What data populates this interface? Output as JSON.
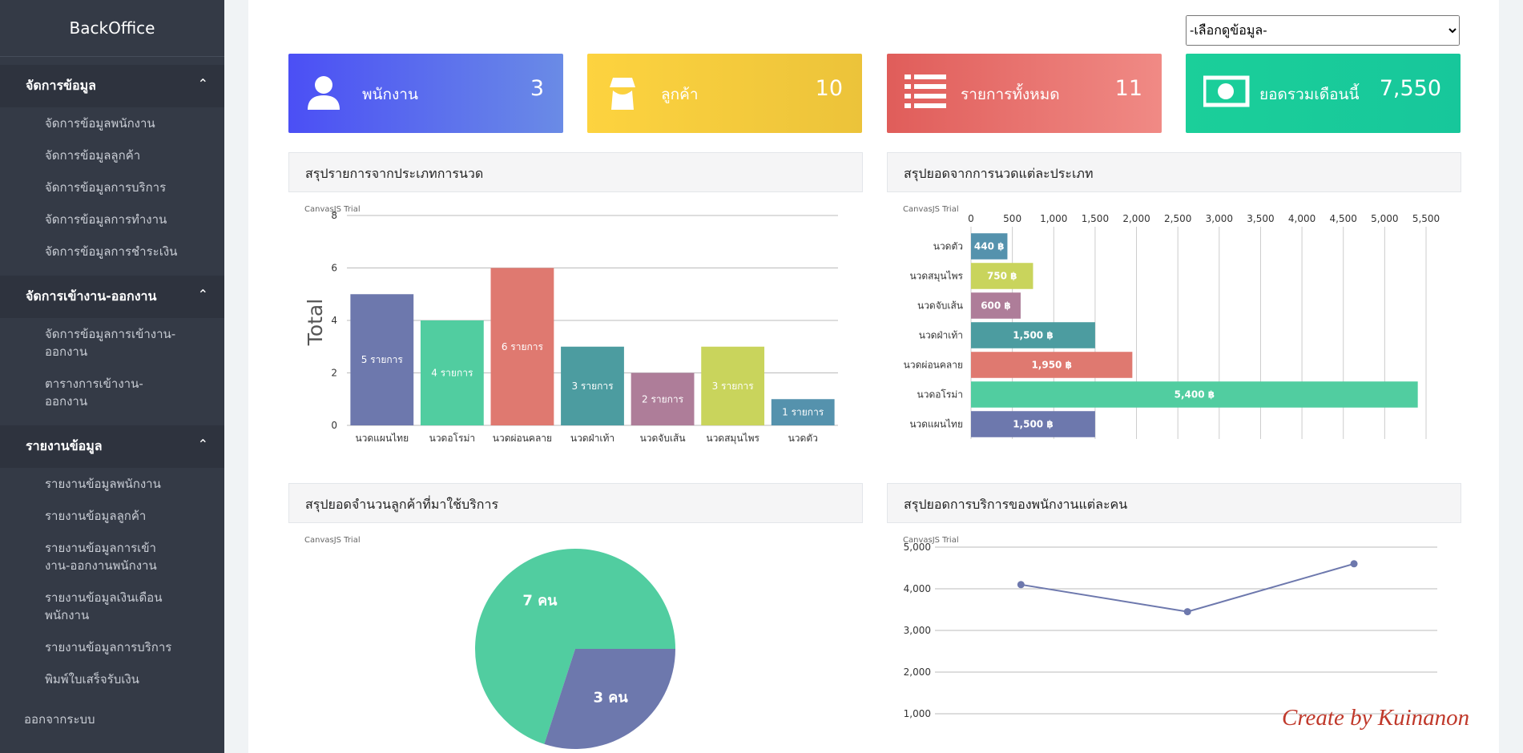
{
  "sidebar": {
    "brand": "BackOffice",
    "sections": [
      {
        "title": "จัดการข้อมูล",
        "items": [
          "จัดการข้อมูลพนักงาน",
          "จัดการข้อมูลลูกค้า",
          "จัดการข้อมูลการบริการ",
          "จัดการข้อมูลการทำงาน",
          "จัดการข้อมูลการชำระเงิน"
        ]
      },
      {
        "title": "จัดการเข้างาน-ออกงาน",
        "items": [
          "จัดการข้อมูลการเข้างาน-ออกงาน",
          "ตารางการเข้างาน-ออกงาน"
        ]
      },
      {
        "title": "รายงานข้อมูล",
        "items": [
          "รายงานข้อมูลพนักงาน",
          "รายงานข้อมูลลูกค้า",
          "รายงานข้อมูลการเข้างาน-ออกงานพนักงาน",
          "รายงานข้อมูลเงินเดือนพนักงาน",
          "รายงานข้อมูลการบริการ",
          "พิมพ์ใบเสร็จรับเงิน"
        ]
      }
    ],
    "logout": "ออกจากระบบ"
  },
  "filter": {
    "placeholder": "-เลือกดูข้อมูล-"
  },
  "cards": [
    {
      "label": "พนักงาน",
      "value": "3"
    },
    {
      "label": "ลูกค้า",
      "value": "10"
    },
    {
      "label": "รายการทั้งหมด",
      "value": "11"
    },
    {
      "label": "ยอดรวมเดือนนี้",
      "value": "7,550"
    }
  ],
  "signature": "Create by Kuinanon",
  "chart_data": [
    {
      "type": "bar",
      "title": "สรุปรายการจากประเภทการนวด",
      "watermark": "CanvasJS Trial",
      "y_label": "Total",
      "categories": [
        "นวดแผนไทย",
        "นวดอโรม่า",
        "นวดผ่อนคลาย",
        "นวดฝ่าเท้า",
        "นวดจับเส้น",
        "นวดสมุนไพร",
        "นวดตัว"
      ],
      "values": [
        5,
        4,
        6,
        3,
        2,
        3,
        1
      ],
      "value_labels": [
        "5 รายการ",
        "4 รายการ",
        "6 รายการ",
        "3 รายการ",
        "2 รายการ",
        "3 รายการ",
        "1 รายการ"
      ],
      "colors": [
        "#6d78ad",
        "#51cda0",
        "#df7970",
        "#4c9ca0",
        "#ae7d99",
        "#c9d45c",
        "#5592ad"
      ],
      "ylim": [
        0,
        8
      ],
      "yticks": [
        0,
        2,
        4,
        6,
        8
      ],
      "grid": true
    },
    {
      "type": "hbar",
      "title": "สรุปยอดจากการนวดแต่ละประเภท",
      "watermark": "CanvasJS Trial",
      "categories": [
        "นวดแผนไทย",
        "นวดอโรม่า",
        "นวดผ่อนคลาย",
        "นวดฝ่าเท้า",
        "นวดจับเส้น",
        "นวดสมุนไพร",
        "นวดตัว"
      ],
      "values": [
        1500,
        5400,
        1950,
        1500,
        600,
        750,
        440
      ],
      "value_labels": [
        "1,500 ฿",
        "5,400 ฿",
        "1,950 ฿",
        "1,500 ฿",
        "600 ฿",
        "750 ฿",
        "440 ฿"
      ],
      "colors": [
        "#6d78ad",
        "#51cda0",
        "#df7970",
        "#4c9ca0",
        "#ae7d99",
        "#c9d45c",
        "#5592ad"
      ],
      "xlim": [
        0,
        5500
      ],
      "xticks": [
        0,
        500,
        {
          "value": 1000,
          "label": "1,000"
        },
        {
          "value": 1500,
          "label": "1,500"
        },
        {
          "value": 2000,
          "label": "2,000"
        },
        {
          "value": 2500,
          "label": "2,500"
        },
        {
          "value": 3000,
          "label": "3,000"
        },
        {
          "value": 3500,
          "label": "3,500"
        },
        {
          "value": 4000,
          "label": "4,000"
        },
        {
          "value": 4500,
          "label": "4,500"
        },
        {
          "value": 5000,
          "label": "5,000"
        },
        {
          "value": 5500,
          "label": "5,500"
        }
      ],
      "grid": true
    },
    {
      "type": "pie",
      "title": "สรุปยอดจำนวนลูกค้าที่มาใช้บริการ",
      "watermark": "CanvasJS Trial",
      "values": [
        7,
        3
      ],
      "value_labels": [
        "7 คน",
        "3 คน"
      ],
      "colors": [
        "#51cda0",
        "#6d78ad"
      ]
    },
    {
      "type": "line",
      "title": "สรุปยอดการบริการของพนักงานแต่ละคน",
      "watermark": "CanvasJS Trial",
      "values": [
        4100,
        3450,
        4600
      ],
      "color": "#6d78ad",
      "ylim": [
        0,
        5000
      ],
      "yticks": [
        {
          "value": 1000,
          "label": "1,000"
        },
        {
          "value": 2000,
          "label": "2,000"
        },
        {
          "value": 3000,
          "label": "3,000"
        },
        {
          "value": 4000,
          "label": "4,000"
        },
        {
          "value": 5000,
          "label": "5,000"
        }
      ],
      "grid": true
    }
  ]
}
